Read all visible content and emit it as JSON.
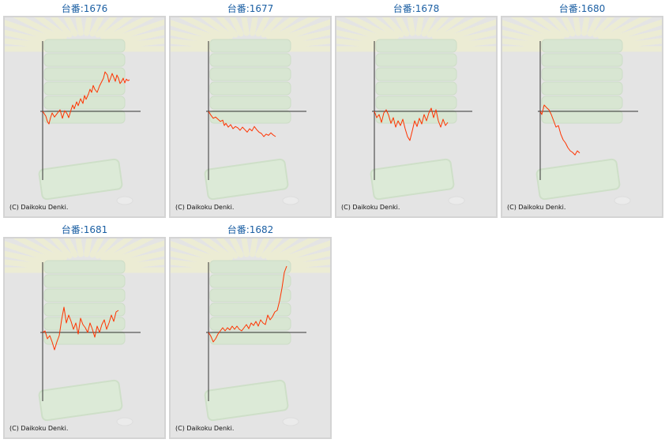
{
  "colors": {
    "title": "#1b5fa3",
    "line": "#ff3300",
    "axis": "#333333",
    "panel_bg": "#e4e4e4",
    "panel_border": "#d4d4d4"
  },
  "charts": [
    {
      "title": "台番:1676",
      "credit": "(C) Daikoku Denki."
    },
    {
      "title": "台番:1677",
      "credit": "(C) Daikoku Denki."
    },
    {
      "title": "台番:1678",
      "credit": "(C) Daikoku Denki."
    },
    {
      "title": "台番:1680",
      "credit": "(C) Daikoku Denki."
    },
    {
      "title": "台番:1681",
      "credit": "(C) Daikoku Denki."
    },
    {
      "title": "台番:1682",
      "credit": "(C) Daikoku Denki."
    }
  ],
  "chart_data": [
    {
      "type": "line",
      "title": "台番:1676",
      "x": [
        0,
        4,
        6,
        8,
        10,
        12,
        15,
        18,
        22,
        25,
        28,
        31,
        33,
        36,
        38,
        40,
        43,
        45,
        48,
        51,
        53,
        55,
        58,
        60,
        62,
        64,
        66,
        69,
        72,
        75,
        77,
        79,
        82,
        84,
        86,
        88,
        90,
        92,
        94,
        96,
        98,
        100,
        102,
        104,
        106,
        108,
        110
      ],
      "y": [
        0,
        -0.15,
        -0.32,
        -0.4,
        -0.2,
        -0.05,
        -0.18,
        -0.08,
        0.05,
        -0.22,
        0.02,
        -0.08,
        -0.2,
        0.05,
        0.2,
        0.08,
        0.3,
        0.18,
        0.4,
        0.25,
        0.5,
        0.38,
        0.55,
        0.7,
        0.6,
        0.82,
        0.7,
        0.6,
        0.8,
        0.95,
        1.05,
        1.25,
        1.15,
        0.92,
        1.05,
        1.2,
        1.08,
        0.95,
        1.15,
        1.05,
        0.88,
        0.95,
        1.05,
        0.9,
        1.02,
        0.97,
        1.0
      ]
    },
    {
      "type": "line",
      "title": "台番:1677",
      "x": [
        0,
        3,
        6,
        9,
        12,
        15,
        18,
        20,
        22,
        25,
        28,
        31,
        34,
        37,
        40,
        43,
        46,
        49,
        52,
        55,
        58,
        61,
        64,
        67,
        70,
        73,
        76,
        79,
        82,
        85
      ],
      "y": [
        0,
        -0.12,
        -0.22,
        -0.18,
        -0.25,
        -0.32,
        -0.28,
        -0.45,
        -0.38,
        -0.5,
        -0.42,
        -0.55,
        -0.48,
        -0.52,
        -0.6,
        -0.5,
        -0.58,
        -0.66,
        -0.55,
        -0.62,
        -0.48,
        -0.58,
        -0.66,
        -0.7,
        -0.8,
        -0.72,
        -0.76,
        -0.68,
        -0.75,
        -0.8
      ]
    },
    {
      "type": "line",
      "title": "台番:1678",
      "x": [
        0,
        3,
        6,
        9,
        12,
        15,
        18,
        21,
        24,
        27,
        30,
        33,
        36,
        39,
        42,
        45,
        48,
        51,
        54,
        57,
        60,
        63,
        66,
        69,
        72,
        75,
        78,
        81,
        84,
        87,
        90,
        93
      ],
      "y": [
        0,
        -0.2,
        -0.1,
        -0.35,
        -0.05,
        0.05,
        -0.12,
        -0.38,
        -0.2,
        -0.5,
        -0.3,
        -0.45,
        -0.25,
        -0.55,
        -0.8,
        -0.92,
        -0.62,
        -0.3,
        -0.48,
        -0.22,
        -0.4,
        -0.1,
        -0.3,
        -0.05,
        0.1,
        -0.2,
        0.05,
        -0.3,
        -0.5,
        -0.25,
        -0.45,
        -0.35
      ]
    },
    {
      "type": "line",
      "title": "台番:1680",
      "x": [
        0,
        2,
        5,
        8,
        11,
        14,
        17,
        20,
        23,
        26,
        29,
        32,
        35,
        38,
        41,
        44,
        47,
        50
      ],
      "y": [
        0,
        -0.1,
        0.2,
        0.12,
        0.05,
        -0.1,
        -0.3,
        -0.5,
        -0.45,
        -0.72,
        -0.9,
        -1.0,
        -1.15,
        -1.25,
        -1.3,
        -1.38,
        -1.25,
        -1.32
      ]
    },
    {
      "type": "line",
      "title": "台番:1681",
      "x": [
        0,
        3,
        6,
        9,
        12,
        15,
        18,
        21,
        24,
        27,
        30,
        33,
        36,
        39,
        42,
        45,
        48,
        51,
        54,
        57,
        60,
        63,
        66,
        69,
        72,
        75,
        78,
        81,
        84,
        87,
        90,
        93,
        96
      ],
      "y": [
        0,
        0.05,
        -0.2,
        -0.1,
        -0.3,
        -0.55,
        -0.3,
        -0.1,
        0.4,
        0.8,
        0.3,
        0.55,
        0.35,
        0.1,
        0.3,
        -0.05,
        0.45,
        0.25,
        0.15,
        0.0,
        0.3,
        0.1,
        -0.15,
        0.2,
        0.0,
        0.25,
        0.4,
        0.1,
        0.3,
        0.55,
        0.35,
        0.65,
        0.7
      ]
    },
    {
      "type": "line",
      "title": "台番:1682",
      "x": [
        0,
        3,
        6,
        9,
        12,
        15,
        18,
        21,
        24,
        27,
        30,
        33,
        36,
        39,
        42,
        45,
        48,
        51,
        54,
        57,
        60,
        63,
        66,
        69,
        72,
        75,
        78,
        81,
        84,
        87,
        90,
        93,
        96,
        99
      ],
      "y": [
        0,
        -0.12,
        -0.3,
        -0.2,
        -0.05,
        0.05,
        0.15,
        0.05,
        0.15,
        0.08,
        0.2,
        0.1,
        0.2,
        0.1,
        0.05,
        0.15,
        0.25,
        0.12,
        0.3,
        0.22,
        0.35,
        0.2,
        0.4,
        0.3,
        0.25,
        0.55,
        0.4,
        0.5,
        0.65,
        0.7,
        1.0,
        1.4,
        1.9,
        2.1
      ]
    }
  ]
}
